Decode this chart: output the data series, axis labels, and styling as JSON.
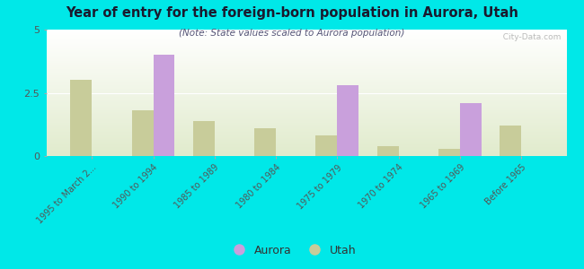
{
  "title": "Year of entry for the foreign-born population in Aurora, Utah",
  "subtitle": "(Note: State values scaled to Aurora population)",
  "categories": [
    "1995 to March 2...",
    "1990 to 1994",
    "1985 to 1989",
    "1980 to 1984",
    "1975 to 1979",
    "1970 to 1974",
    "1965 to 1969",
    "Before 1965"
  ],
  "aurora_values": [
    0,
    4.0,
    0,
    0,
    2.8,
    0,
    2.1,
    0
  ],
  "utah_values": [
    3.0,
    1.8,
    1.4,
    1.1,
    0.8,
    0.4,
    0.3,
    1.2
  ],
  "aurora_color": "#c9a0dc",
  "utah_color": "#c8cc9a",
  "background_color": "#00e8e8",
  "ylim": [
    0,
    5
  ],
  "yticks": [
    0,
    2.5,
    5
  ],
  "bar_width": 0.35,
  "watermark": "  City-Data.com",
  "legend_aurora": "Aurora",
  "legend_utah": "Utah"
}
